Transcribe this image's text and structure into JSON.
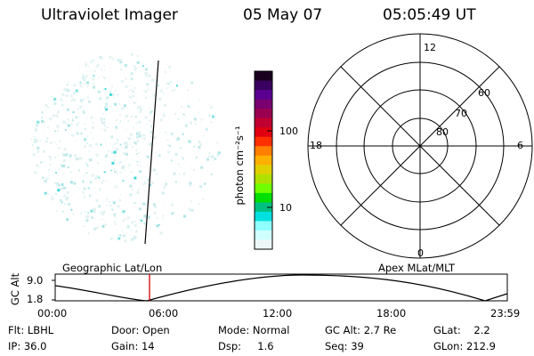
{
  "header": {
    "instrument": "Ultraviolet Imager",
    "date": "05 May 07",
    "time": "05:05:49 UT"
  },
  "colorbar": {
    "unit_label": "photon cm⁻²s⁻¹",
    "ticks": [
      "100",
      "10"
    ],
    "colors": [
      "#1a0020",
      "#3a0060",
      "#5a0090",
      "#7a0070",
      "#9a0050",
      "#c00030",
      "#e00010",
      "#ff3000",
      "#ff8000",
      "#ffb000",
      "#e0d000",
      "#b0e000",
      "#70ff00",
      "#00e000",
      "#00c080",
      "#00e0e0",
      "#90ffff",
      "#d0ffff",
      "#eef7f7"
    ]
  },
  "polar_plot": {
    "mlt_labels": {
      "top": "12",
      "left": "18",
      "right": "6",
      "bottom": "0"
    },
    "lat_labels": [
      "60",
      "70",
      "80"
    ]
  },
  "altitude_plot": {
    "left_title": "Geographic Lat/Lon",
    "right_title": "Apex MLat/MLT",
    "y_axis_label": "GC Alt",
    "y_ticks": [
      "9.0",
      "1.8"
    ],
    "x_ticks": [
      "00:00",
      "06:00",
      "12:00",
      "18:00",
      "23:59"
    ],
    "marker_color": "#cc0000"
  },
  "footer": {
    "filter": "Flt: LBHL",
    "door": "Door: Open",
    "mode": "Mode: Normal",
    "gc_alt": "GC Alt: 2.7 Re",
    "glat": "GLat:    2.2",
    "ip": "IP: 36.0",
    "gain": "Gain: 14",
    "dsp": "Dsp:     1.6",
    "seq": "Seq: 39",
    "glon": "GLon: 212.9"
  }
}
